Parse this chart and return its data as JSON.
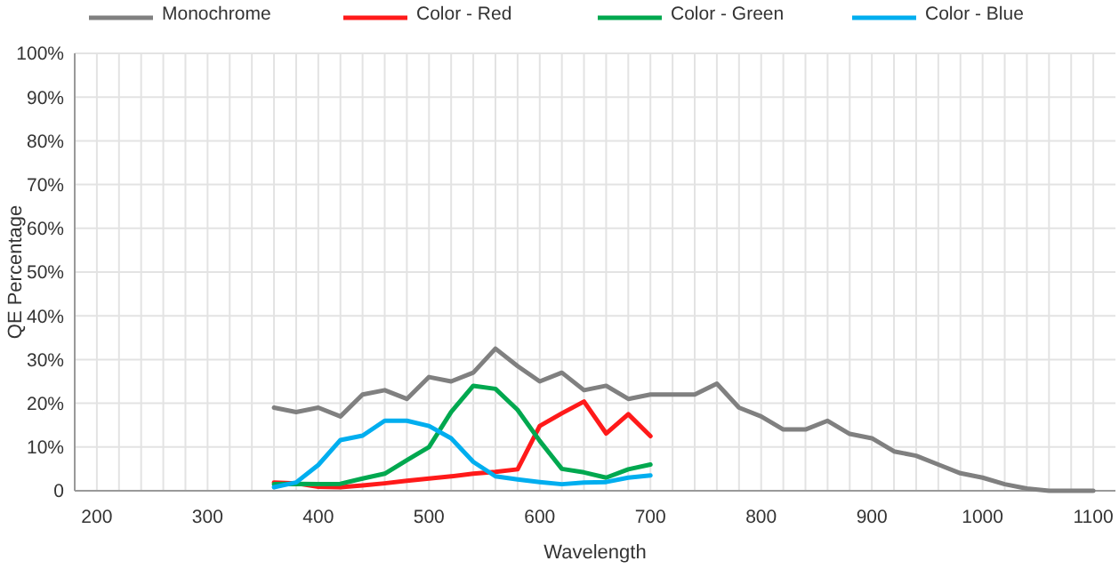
{
  "chart_data": {
    "type": "line",
    "xlabel": "Wavelength",
    "ylabel": "QE Percentage",
    "legend": "top",
    "grid": true,
    "xlim": [
      180,
      1120
    ],
    "xticks": [
      {
        "value": 180,
        "label": null
      },
      200,
      {
        "value": 220,
        "label": null
      },
      {
        "value": 240,
        "label": null
      },
      {
        "value": 260,
        "label": null
      },
      {
        "value": 280,
        "label": null
      },
      300,
      {
        "value": 320,
        "label": null
      },
      {
        "value": 340,
        "label": null
      },
      {
        "value": 360,
        "label": null
      },
      {
        "value": 380,
        "label": null
      },
      400,
      {
        "value": 420,
        "label": null
      },
      {
        "value": 440,
        "label": null
      },
      {
        "value": 460,
        "label": null
      },
      {
        "value": 480,
        "label": null
      },
      500,
      {
        "value": 520,
        "label": null
      },
      {
        "value": 540,
        "label": null
      },
      {
        "value": 560,
        "label": null
      },
      {
        "value": 580,
        "label": null
      },
      600,
      {
        "value": 620,
        "label": null
      },
      {
        "value": 640,
        "label": null
      },
      {
        "value": 660,
        "label": null
      },
      {
        "value": 680,
        "label": null
      },
      700,
      {
        "value": 720,
        "label": null
      },
      {
        "value": 740,
        "label": null
      },
      {
        "value": 760,
        "label": null
      },
      {
        "value": 780,
        "label": null
      },
      800,
      {
        "value": 820,
        "label": null
      },
      {
        "value": 840,
        "label": null
      },
      {
        "value": 860,
        "label": null
      },
      {
        "value": 880,
        "label": null
      },
      900,
      {
        "value": 920,
        "label": null
      },
      {
        "value": 940,
        "label": null
      },
      {
        "value": 960,
        "label": null
      },
      {
        "value": 980,
        "label": null
      },
      1000,
      {
        "value": 1020,
        "label": null
      },
      {
        "value": 1040,
        "label": null
      },
      {
        "value": 1060,
        "label": null
      },
      {
        "value": 1080,
        "label": null
      },
      1100
    ],
    "ylim": [
      0,
      100
    ],
    "yticks": [
      0,
      {
        "value": 10,
        "label": "10%"
      },
      {
        "value": 20,
        "label": "20%"
      },
      {
        "value": 30,
        "label": "30%"
      },
      {
        "value": 40,
        "label": "40%"
      },
      {
        "value": 50,
        "label": "50%"
      },
      {
        "value": 60,
        "label": "60%"
      },
      {
        "value": 70,
        "label": "70%"
      },
      {
        "value": 80,
        "label": "80%"
      },
      {
        "value": 90,
        "label": "90%"
      },
      {
        "value": 100,
        "label": "100%"
      }
    ],
    "series": [
      {
        "name": "Monochrome",
        "color": "#808080",
        "x": [
          360,
          380,
          400,
          420,
          440,
          460,
          480,
          500,
          520,
          540,
          560,
          580,
          600,
          620,
          640,
          660,
          680,
          700,
          720,
          740,
          760,
          780,
          800,
          820,
          840,
          860,
          880,
          900,
          920,
          940,
          960,
          980,
          1000,
          1020,
          1040,
          1060,
          1080,
          1100
        ],
        "values": [
          19,
          18,
          19,
          17,
          22,
          23,
          21,
          26,
          25,
          27,
          32.5,
          28.5,
          25,
          27,
          23,
          24,
          21,
          22,
          22,
          22,
          24.5,
          19,
          17,
          14,
          14,
          16,
          13,
          12,
          9,
          8,
          6,
          4,
          3,
          1.5,
          0.5,
          0,
          0,
          0
        ]
      },
      {
        "name": "Color - Red",
        "color": "#ff1a1a",
        "x": [
          360,
          380,
          400,
          420,
          440,
          460,
          480,
          500,
          520,
          540,
          560,
          580,
          600,
          620,
          640,
          660,
          680,
          700
        ],
        "values": [
          1.9,
          1.7,
          0.9,
          0.8,
          1.2,
          1.7,
          2.3,
          2.8,
          3.3,
          3.9,
          4.3,
          4.9,
          14.8,
          17.7,
          20.4,
          13.1,
          17.5,
          12.5
        ]
      },
      {
        "name": "Color - Green",
        "color": "#00a84f",
        "x": [
          360,
          380,
          400,
          420,
          440,
          460,
          480,
          500,
          520,
          540,
          560,
          580,
          600,
          620,
          640,
          660,
          680,
          700
        ],
        "values": [
          1.5,
          1.6,
          1.5,
          1.6,
          2.8,
          3.9,
          7,
          10,
          18,
          24,
          23.3,
          18.5,
          11.4,
          5,
          4.2,
          3,
          4.9,
          6
        ]
      },
      {
        "name": "Color - Blue",
        "color": "#00aeef",
        "x": [
          360,
          380,
          400,
          420,
          440,
          460,
          480,
          500,
          520,
          540,
          560,
          580,
          600,
          620,
          640,
          660,
          680,
          700
        ],
        "values": [
          0.8,
          1.9,
          5.9,
          11.6,
          12.6,
          16,
          16,
          14.8,
          12,
          6.6,
          3.3,
          2.6,
          2,
          1.5,
          1.9,
          2,
          3,
          3.5
        ]
      }
    ]
  }
}
